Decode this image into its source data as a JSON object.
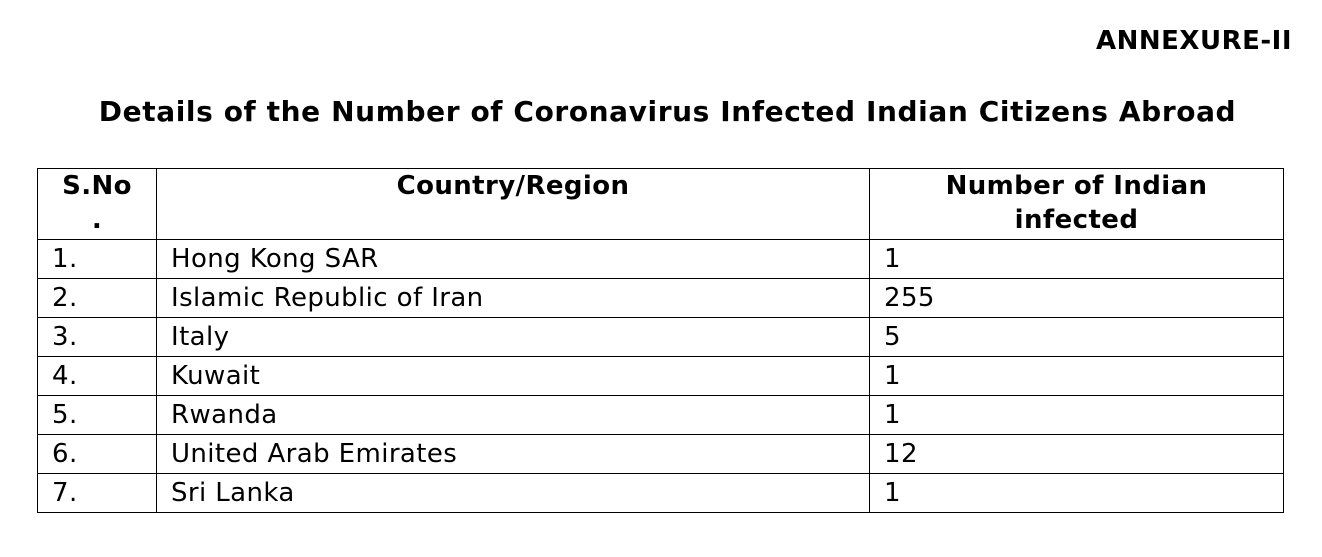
{
  "annexure": "ANNEXURE-II",
  "title": "Details of the Number of Coronavirus Infected Indian Citizens Abroad",
  "table": {
    "headers": {
      "sno_line1": "S.No",
      "sno_line2": ".",
      "country": "Country/Region",
      "count_line1": "Number of Indian",
      "count_line2": "infected"
    },
    "rows": [
      {
        "sno": "1.",
        "country": "Hong Kong SAR",
        "count": "1"
      },
      {
        "sno": "2.",
        "country": "Islamic Republic of Iran",
        "count": "255"
      },
      {
        "sno": "3.",
        "country": "Italy",
        "count": "5"
      },
      {
        "sno": "4.",
        "country": "Kuwait",
        "count": "1"
      },
      {
        "sno": "5.",
        "country": "Rwanda",
        "count": "1"
      },
      {
        "sno": "6.",
        "country": "United Arab Emirates",
        "count": "12"
      },
      {
        "sno": "7.",
        "country": "Sri Lanka",
        "count": "1"
      }
    ]
  }
}
